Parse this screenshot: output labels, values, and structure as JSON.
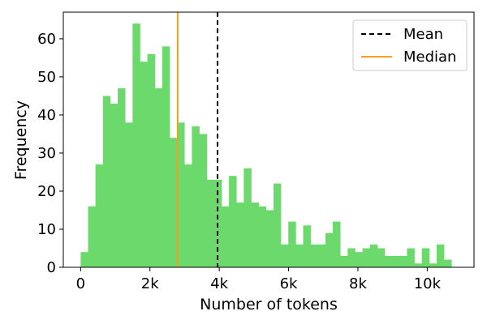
{
  "chart_data": {
    "type": "bar",
    "subtype": "histogram",
    "xlabel": "Number of tokens",
    "ylabel": "Frequency",
    "xlim": [
      -500,
      11350
    ],
    "ylim": [
      0,
      67
    ],
    "x_ticks": [
      {
        "value": 0,
        "label": "0"
      },
      {
        "value": 2000,
        "label": "2k"
      },
      {
        "value": 4000,
        "label": "4k"
      },
      {
        "value": 6000,
        "label": "6k"
      },
      {
        "value": 8000,
        "label": "8k"
      },
      {
        "value": 10000,
        "label": "10k"
      }
    ],
    "y_ticks": [
      0,
      10,
      20,
      30,
      40,
      50,
      60
    ],
    "bin_start": 0,
    "bin_width": 214,
    "counts": [
      4,
      16,
      27,
      45,
      43,
      47,
      38,
      64,
      54,
      56,
      47,
      58,
      34,
      38,
      27,
      37,
      35,
      23,
      23,
      16,
      24,
      17,
      26,
      17,
      16,
      15,
      22,
      6,
      12,
      6,
      11,
      6,
      6,
      9,
      12,
      3,
      5,
      4,
      5,
      6,
      5,
      3,
      3,
      3,
      5,
      1,
      5,
      1,
      6,
      2
    ],
    "bar_color": "#6bd96b",
    "reference_lines": [
      {
        "name": "Mean",
        "value": 3950,
        "color": "#000000",
        "style": "dashed"
      },
      {
        "name": "Median",
        "value": 2800,
        "color": "#f5a01a",
        "style": "solid"
      }
    ],
    "legend_position": "top-right",
    "grid": false
  }
}
